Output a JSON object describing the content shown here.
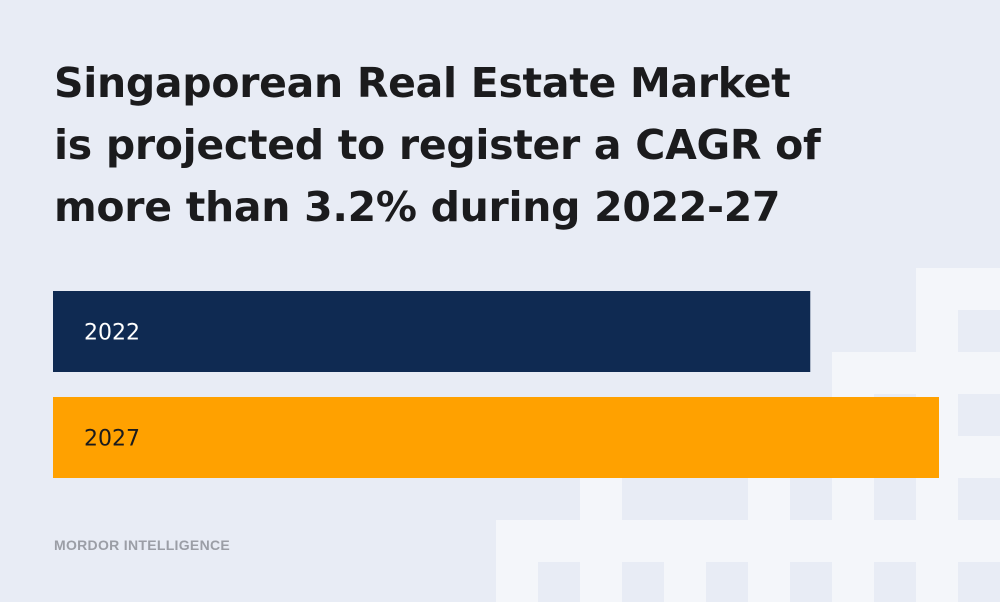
{
  "headline": {
    "lines": [
      "Singaporean Real Estate Market",
      "is projected to register a CAGR of",
      "more than 3.2% during 2022-27"
    ]
  },
  "source": "MORDOR INTELLIGENCE",
  "colors": {
    "background": "#e8ecf5",
    "bar_2022": "#0f2a52",
    "bar_2027": "#ffa100",
    "label_on_dark": "#ffffff",
    "label_on_light": "#1b1b1d",
    "decoration": "#f4f6fa"
  },
  "chart_data": {
    "type": "bar",
    "orientation": "horizontal",
    "categories": [
      "2022",
      "2027"
    ],
    "values": [
      1,
      1.17
    ],
    "title": "Singaporean Real Estate Market is projected to register a CAGR of more than 3.2% during 2022-27",
    "xlabel": "",
    "ylabel": "",
    "grid": false,
    "legend": "none"
  }
}
